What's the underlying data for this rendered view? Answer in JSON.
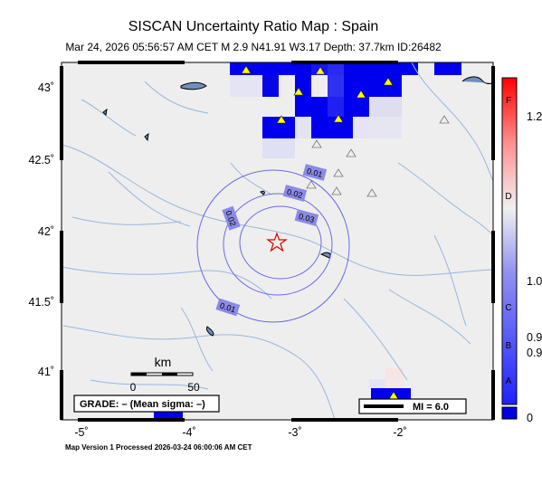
{
  "header": {
    "title": "SISCAN Uncertainty Ratio Map : Spain",
    "subtitle": "Mar 24, 2026 05:56:57 AM CET   M 2.9   N41.91 W3.17   Depth: 37.7km   ID:26482"
  },
  "map": {
    "y_ticks": [
      "43˚",
      "42.5˚",
      "42˚",
      "41.5˚",
      "41˚"
    ],
    "x_ticks": [
      "-5˚",
      "-4˚",
      "-3˚",
      "-2˚"
    ],
    "contour_labels": [
      "0.01",
      "0.02",
      "0.03",
      "0.02",
      "0.01"
    ],
    "grade_label": "GRADE: – (Mean sigma: –)",
    "scale_bar": {
      "title": "km",
      "start": "0",
      "end": "50"
    },
    "mi_label": "MI = 6.0",
    "epicenter_icon": "star-icon",
    "station_icon": "triangle-icon"
  },
  "colorbar": {
    "letters": [
      "F",
      "D",
      "C",
      "B",
      "A"
    ],
    "tick_labels": [
      "1.2",
      "1.0",
      "0.9",
      "0.9",
      "0"
    ],
    "colors": {
      "low": "#0000e0",
      "mid": "#f0f0f0",
      "high": "#ff0000"
    }
  },
  "footer": {
    "text": "Map Version 1 Processed 2026-03-24 06:00:06 AM CET"
  }
}
